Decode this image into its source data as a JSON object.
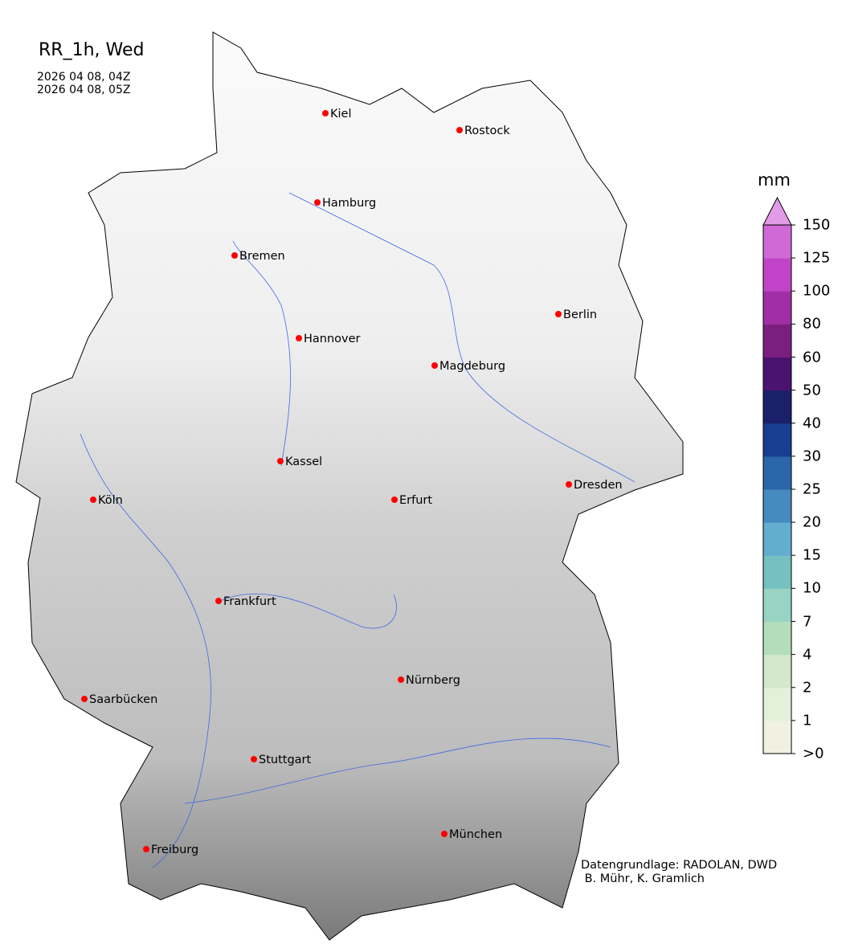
{
  "header": {
    "title": "RR_1h, Wed",
    "time_start": "2026 04 08, 04Z",
    "time_end": "2026 04 08, 05Z"
  },
  "map": {
    "region": "Germany",
    "background": "grayscale terrain relief",
    "river_color": "#4169e1",
    "city_marker_color": "#ff0000",
    "cities": [
      "Kiel",
      "Rostock",
      "Hamburg",
      "Bremen",
      "Berlin",
      "Hannover",
      "Magdeburg",
      "Kassel",
      "Dresden",
      "Köln",
      "Erfurt",
      "Frankfurt",
      "Nürnberg",
      "Saarbücken",
      "Stuttgart",
      "München",
      "Freiburg"
    ],
    "precipitation_shown": false
  },
  "colorbar": {
    "unit": "mm",
    "ticks": [
      ">0",
      "1",
      "2",
      "4",
      "7",
      "10",
      "15",
      "20",
      "25",
      "30",
      "40",
      "50",
      "60",
      "80",
      "100",
      "125",
      "150"
    ],
    "colors": [
      "#f1f1e1",
      "#e3f0da",
      "#d2e8c8",
      "#b3ddbb",
      "#98d3c3",
      "#75c0c0",
      "#63adcf",
      "#468bbf",
      "#2a66a9",
      "#173e8f",
      "#1a216a",
      "#4b1370",
      "#7b1f7e",
      "#a02fa5",
      "#c144c8",
      "#d069d6"
    ],
    "extend_color": "#e29be6"
  },
  "credits": {
    "line1": "Datengrundlage: RADOLAN, DWD",
    "line2": " B. Mühr, K. Gramlich"
  }
}
